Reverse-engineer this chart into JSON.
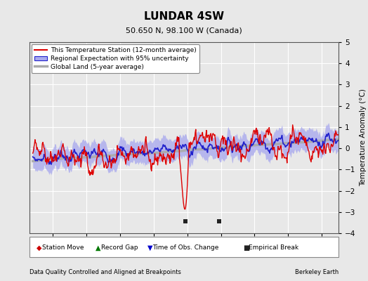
{
  "title": "LUNDAR 4SW",
  "subtitle": "50.650 N, 98.100 W (Canada)",
  "ylabel": "Temperature Anomaly (°C)",
  "xlabel_left": "Data Quality Controlled and Aligned at Breakpoints",
  "xlabel_right": "Berkeley Earth",
  "ylim": [
    -4,
    5
  ],
  "xlim": [
    1956.5,
    2002.5
  ],
  "xticks": [
    1960,
    1965,
    1970,
    1975,
    1980,
    1985,
    1990,
    1995,
    2000
  ],
  "yticks": [
    -4,
    -3,
    -2,
    -1,
    0,
    1,
    2,
    3,
    4,
    5
  ],
  "bg_color": "#e8e8e8",
  "plot_bg_color": "#e8e8e8",
  "grid_color": "#ffffff",
  "red_color": "#dd0000",
  "blue_color": "#2222cc",
  "blue_fill_color": "#aaaaee",
  "gray_color": "#aaaaaa",
  "marker_colors": {
    "station_move": "#cc0000",
    "record_gap": "#007700",
    "time_obs": "#0000cc",
    "empirical": "#222222"
  },
  "empirical_breaks": [
    1979.75,
    1984.75
  ],
  "legend_entries": [
    "This Temperature Station (12-month average)",
    "Regional Expectation with 95% uncertainty",
    "Global Land (5-year average)"
  ]
}
